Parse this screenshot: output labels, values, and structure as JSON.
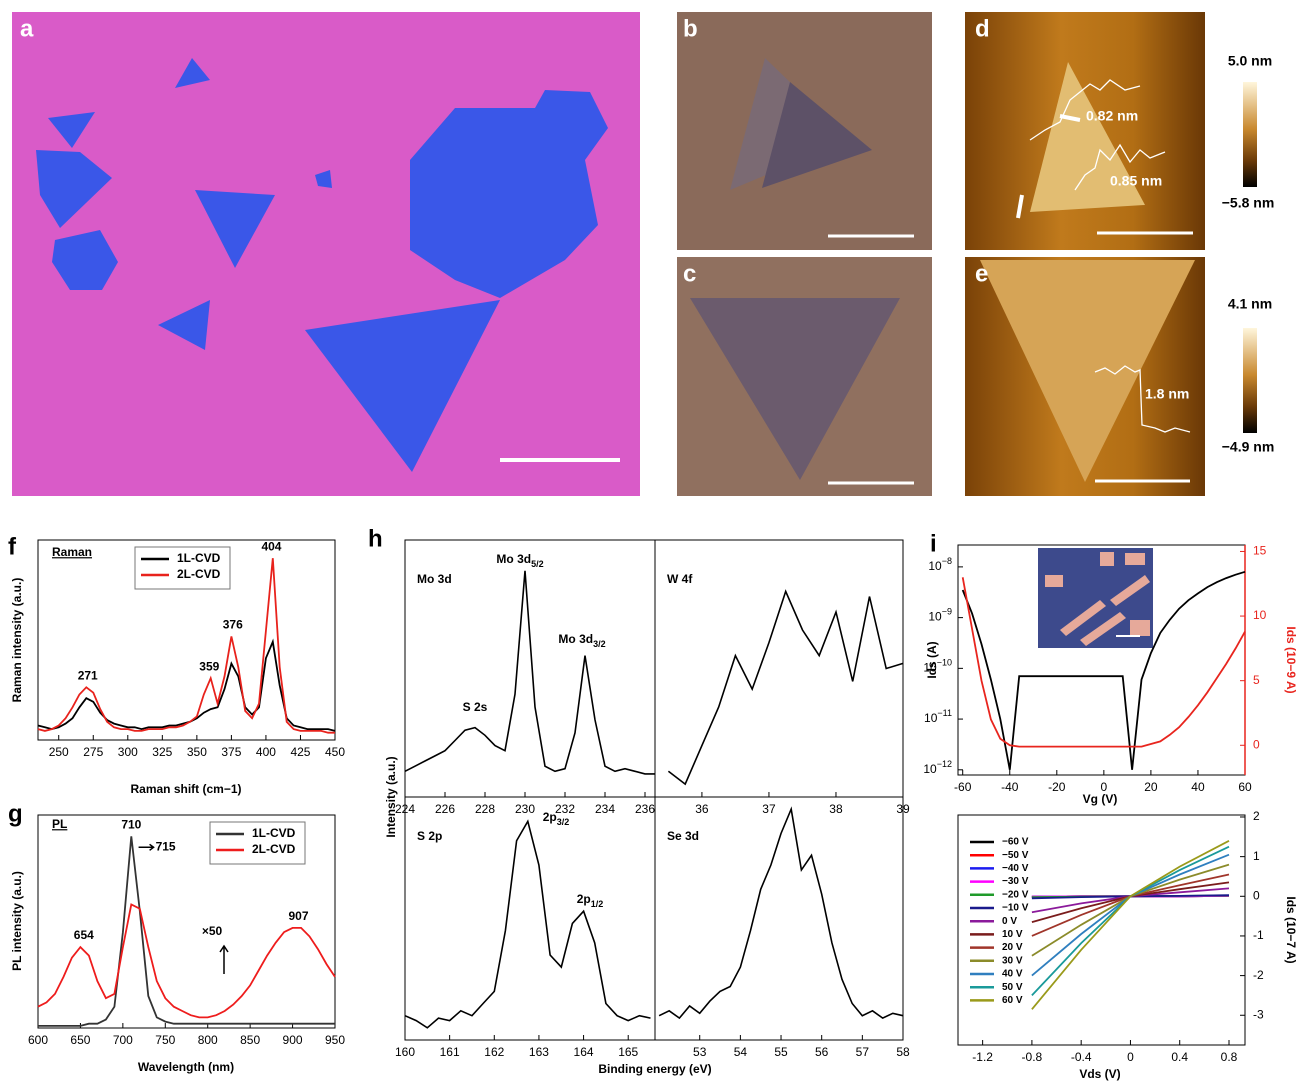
{
  "panels": [
    {
      "label": "a"
    },
    {
      "label": "b"
    },
    {
      "label": "c"
    },
    {
      "label": "d",
      "colorbar": [
        "5.0 nm",
        "−5.8 nm"
      ],
      "annotations": [
        "0.82 nm",
        "0.85 nm"
      ]
    },
    {
      "label": "e",
      "colorbar": [
        "4.1 nm",
        "−4.9 nm"
      ],
      "annotations": [
        "1.8 nm"
      ]
    }
  ],
  "chart_data": [
    {
      "type": "line",
      "panel": "f",
      "inset_label": "Raman",
      "xlabel": "Raman shift (cm−1)",
      "ylabel": "Raman intensity (a.u.)",
      "xlim": [
        235,
        450
      ],
      "xticks": [
        250,
        275,
        300,
        325,
        350,
        375,
        400,
        425,
        450
      ],
      "ylim": [
        0,
        110
      ],
      "legend": "upper left",
      "peak_labels": [
        271,
        359,
        376,
        404
      ],
      "x": [
        235,
        240,
        245,
        250,
        255,
        260,
        265,
        270,
        275,
        280,
        285,
        290,
        295,
        300,
        305,
        310,
        315,
        320,
        325,
        330,
        335,
        340,
        345,
        350,
        355,
        360,
        365,
        370,
        375,
        380,
        385,
        390,
        395,
        400,
        405,
        410,
        415,
        420,
        425,
        430,
        435,
        440,
        445,
        450
      ],
      "series": [
        {
          "name": "1L-CVD",
          "color": "#000000",
          "values": [
            8,
            7,
            6,
            7,
            9,
            12,
            18,
            23,
            21,
            15,
            11,
            9,
            8,
            7,
            7,
            6,
            7,
            7,
            7,
            8,
            8,
            9,
            10,
            12,
            15,
            17,
            18,
            28,
            42,
            35,
            18,
            14,
            18,
            45,
            54,
            30,
            12,
            8,
            7,
            6,
            6,
            6,
            6,
            5
          ]
        },
        {
          "name": "2L-CVD",
          "color": "#e8221c",
          "values": [
            6,
            5,
            6,
            8,
            12,
            18,
            25,
            29,
            26,
            17,
            10,
            7,
            6,
            6,
            5,
            5,
            6,
            6,
            6,
            7,
            7,
            8,
            10,
            13,
            25,
            34,
            20,
            35,
            57,
            40,
            16,
            12,
            20,
            60,
            100,
            40,
            10,
            6,
            5,
            5,
            5,
            5,
            4,
            4
          ]
        }
      ]
    },
    {
      "type": "line",
      "panel": "g",
      "inset_label": "PL",
      "xlabel": "Wavelength (nm)",
      "ylabel": "PL intensity (a.u.)",
      "xlim": [
        600,
        950
      ],
      "xticks": [
        600,
        650,
        700,
        750,
        800,
        850,
        900,
        950
      ],
      "ylim": [
        0,
        100
      ],
      "legend": "upper right",
      "peak_labels": [
        654,
        710,
        715,
        907
      ],
      "annotations": [
        "×50"
      ],
      "x": [
        600,
        610,
        620,
        630,
        640,
        650,
        660,
        670,
        680,
        690,
        700,
        710,
        720,
        730,
        740,
        750,
        760,
        770,
        780,
        790,
        800,
        810,
        820,
        830,
        840,
        850,
        860,
        870,
        880,
        890,
        900,
        910,
        920,
        930,
        940,
        950
      ],
      "series": [
        {
          "name": "1L-CVD",
          "color": "#333333",
          "values": [
            1,
            1,
            1,
            1,
            1,
            1,
            2,
            2,
            4,
            10,
            45,
            90,
            55,
            15,
            5,
            3,
            2,
            2,
            2,
            2,
            2,
            2,
            2,
            2,
            2,
            2,
            2,
            2,
            2,
            2,
            2,
            2,
            2,
            2,
            2,
            2
          ]
        },
        {
          "name": "2L-CVD",
          "color": "#ee1c1c",
          "values": [
            10,
            12,
            16,
            24,
            33,
            38,
            34,
            22,
            14,
            16,
            38,
            58,
            56,
            38,
            22,
            14,
            10,
            8,
            6,
            5,
            5,
            6,
            8,
            11,
            15,
            20,
            27,
            34,
            40,
            45,
            47,
            47,
            43,
            37,
            30,
            24
          ]
        }
      ]
    },
    {
      "type": "line",
      "panel": "h",
      "ylabel": "Intensity (a.u.)",
      "xlabel": "Binding energy (eV)",
      "subplots": [
        {
          "title": "Mo 3d",
          "xlim": [
            224,
            236.5
          ],
          "xticks": [
            224,
            226,
            228,
            230,
            232,
            234,
            236
          ],
          "ylim": [
            0,
            100
          ],
          "color": "#000000",
          "annotations": [
            {
              "text": "S 2s"
            },
            {
              "text": "Mo 3d",
              "sub": "5/2"
            },
            {
              "text": "Mo 3d",
              "sub": "3/2"
            }
          ],
          "x": [
            224,
            224.5,
            225,
            225.5,
            226,
            226.5,
            227,
            227.5,
            228,
            228.5,
            229,
            229.5,
            230,
            230.5,
            231,
            231.5,
            232,
            232.5,
            233,
            233.5,
            234,
            234.5,
            235,
            235.5,
            236,
            236.5
          ],
          "values": [
            10,
            12,
            14,
            16,
            18,
            22,
            26,
            27,
            24,
            20,
            18,
            40,
            88,
            35,
            12,
            10,
            11,
            25,
            55,
            30,
            12,
            10,
            11,
            10,
            9,
            9
          ]
        },
        {
          "title": "W 4f",
          "xlim": [
            35.3,
            39
          ],
          "xticks": [
            36,
            37,
            38,
            39
          ],
          "ylim": [
            0,
            100
          ],
          "color": "#000000",
          "x": [
            35.5,
            35.75,
            36,
            36.25,
            36.5,
            36.75,
            37,
            37.25,
            37.5,
            37.75,
            38,
            38.25,
            38.5,
            38.75,
            39
          ],
          "values": [
            10,
            5,
            20,
            35,
            55,
            42,
            60,
            80,
            65,
            55,
            72,
            45,
            78,
            50,
            52
          ]
        },
        {
          "title": "S 2p",
          "xlim": [
            160,
            165.6
          ],
          "xticks": [
            160,
            161,
            162,
            163,
            164,
            165
          ],
          "ylim": [
            0,
            100
          ],
          "color": "#000000",
          "annotations": [
            {
              "text": "2p",
              "sub": "3/2"
            },
            {
              "text": "2p",
              "sub": "1/2"
            }
          ],
          "x": [
            160,
            160.25,
            160.5,
            160.75,
            161,
            161.25,
            161.5,
            161.75,
            162,
            162.25,
            162.5,
            162.75,
            163,
            163.25,
            163.5,
            163.75,
            164,
            164.25,
            164.5,
            164.75,
            165,
            165.25,
            165.5
          ],
          "values": [
            10,
            8,
            5,
            9,
            8,
            12,
            10,
            15,
            20,
            45,
            82,
            90,
            72,
            35,
            30,
            48,
            53,
            40,
            15,
            10,
            8,
            10,
            9
          ]
        },
        {
          "title": "Se 3d",
          "xlim": [
            51.9,
            58
          ],
          "xticks": [
            53,
            54,
            55,
            56,
            57,
            58
          ],
          "ylim": [
            0,
            100
          ],
          "color": "#000000",
          "x": [
            52,
            52.25,
            52.5,
            52.75,
            53,
            53.25,
            53.5,
            53.75,
            54,
            54.25,
            54.5,
            54.75,
            55,
            55.25,
            55.5,
            55.75,
            56,
            56.25,
            56.5,
            56.75,
            57,
            57.25,
            57.5,
            57.75,
            58
          ],
          "values": [
            10,
            12,
            9,
            14,
            11,
            16,
            20,
            22,
            30,
            45,
            62,
            72,
            85,
            95,
            70,
            76,
            60,
            40,
            25,
            15,
            10,
            12,
            9,
            11,
            10
          ]
        }
      ]
    },
    {
      "type": "line",
      "panel": "i",
      "xlabel": "Vg (V)",
      "ylabel": "Ids (A)",
      "y2label": "Ids (10−9 A)",
      "y2_color": "#e8251e",
      "xlim": [
        -62,
        60
      ],
      "xticks": [
        -60,
        -40,
        -20,
        0,
        20,
        40,
        60
      ],
      "ylog": true,
      "ylim": [
        7.9e-13,
        2.7e-08
      ],
      "yticks": [
        {
          "value": 1e-08,
          "label": "10−8"
        },
        {
          "value": 1e-09,
          "label": "10−9"
        },
        {
          "value": 1e-10,
          "label": "10−10"
        },
        {
          "value": 1e-11,
          "label": "10−11"
        },
        {
          "value": 1e-12,
          "label": "10−12"
        }
      ],
      "y2lim": [
        -2.3,
        15.5
      ],
      "y2ticks": [
        0,
        5,
        10,
        15
      ],
      "x": [
        -60,
        -56,
        -52,
        -48,
        -44,
        -40,
        -36,
        -32,
        -28,
        -24,
        -20,
        -16,
        -12,
        -8,
        -4,
        0,
        4,
        8,
        12,
        16,
        20,
        24,
        28,
        32,
        36,
        40,
        44,
        48,
        52,
        56,
        60
      ],
      "series": [
        {
          "color": "#000000",
          "values": [
            3.5e-09,
            1.2e-09,
            3e-10,
            6e-11,
            1e-11,
            1e-12,
            7e-11,
            7e-11,
            7e-11,
            7e-11,
            7e-11,
            7e-11,
            7e-11,
            7e-11,
            7e-11,
            7e-11,
            7e-11,
            7e-11,
            1e-12,
            6e-11,
            2e-10,
            5e-10,
            9e-10,
            1.5e-09,
            2.2e-09,
            3e-09,
            4e-09,
            5e-09,
            6e-09,
            7e-09,
            8e-09
          ]
        },
        {
          "color": "#e8251e",
          "axis": "y2",
          "values": [
            13,
            9,
            5,
            2,
            0.5,
            0,
            -0.1,
            -0.1,
            -0.1,
            -0.1,
            -0.1,
            -0.1,
            -0.1,
            -0.1,
            -0.1,
            -0.1,
            -0.1,
            -0.1,
            -0.1,
            -0.1,
            0.1,
            0.3,
            0.8,
            1.4,
            2.2,
            3.1,
            4.1,
            5.2,
            6.3,
            7.5,
            8.8
          ]
        }
      ]
    },
    {
      "type": "line",
      "xlabel": "Vds (V)",
      "y2label": "Ids (10−7 A)",
      "legend": "upper left",
      "xlim": [
        -1.4,
        0.93
      ],
      "xticks": [
        -1.2,
        -0.8,
        -0.4,
        0,
        0.4,
        0.8
      ],
      "y2lim": [
        -3.75,
        2.05
      ],
      "y2ticks": [
        2,
        1,
        0,
        -1,
        -2,
        -3
      ],
      "x": [
        -0.8,
        -0.4,
        0,
        0.4,
        0.8
      ],
      "series": [
        {
          "name": "−60 V",
          "color": "#000000",
          "axis": "y2",
          "values": [
            -0.01,
            0,
            0,
            0,
            0.01
          ]
        },
        {
          "name": "−50 V",
          "color": "#ff0000",
          "axis": "y2",
          "values": [
            -0.01,
            0,
            0,
            0,
            0.01
          ]
        },
        {
          "name": "−40 V",
          "color": "#1c1cf0",
          "axis": "y2",
          "values": [
            -0.01,
            0,
            0,
            0,
            0.01
          ]
        },
        {
          "name": "−30 V",
          "color": "#ff00ff",
          "axis": "y2",
          "values": [
            -0.01,
            0,
            0,
            0,
            0.01
          ]
        },
        {
          "name": "−20 V",
          "color": "#1f9a2a",
          "axis": "y2",
          "values": [
            -0.02,
            -0.01,
            0,
            0.01,
            0.02
          ]
        },
        {
          "name": "−10 V",
          "color": "#1a1a8c",
          "axis": "y2",
          "values": [
            -0.05,
            -0.02,
            0,
            0.01,
            0.03
          ]
        },
        {
          "name": "0 V",
          "color": "#8b1a9b",
          "axis": "y2",
          "values": [
            -0.4,
            -0.18,
            0,
            0.1,
            0.2
          ]
        },
        {
          "name": "10 V",
          "color": "#7a1c1c",
          "axis": "y2",
          "values": [
            -0.65,
            -0.3,
            0,
            0.18,
            0.35
          ]
        },
        {
          "name": "20 V",
          "color": "#a0352a",
          "axis": "y2",
          "values": [
            -1.0,
            -0.47,
            0,
            0.28,
            0.55
          ]
        },
        {
          "name": "30 V",
          "color": "#8b8b2a",
          "axis": "y2",
          "values": [
            -1.5,
            -0.72,
            0,
            0.42,
            0.8
          ]
        },
        {
          "name": "40 V",
          "color": "#2f7fbf",
          "axis": "y2",
          "values": [
            -2.0,
            -0.95,
            0,
            0.55,
            1.05
          ]
        },
        {
          "name": "50 V",
          "color": "#1a9a9a",
          "axis": "y2",
          "values": [
            -2.5,
            -1.18,
            0,
            0.66,
            1.25
          ]
        },
        {
          "name": "60 V",
          "color": "#9a9a1a",
          "axis": "y2",
          "values": [
            -2.85,
            -1.35,
            0,
            0.75,
            1.4
          ]
        }
      ]
    }
  ]
}
